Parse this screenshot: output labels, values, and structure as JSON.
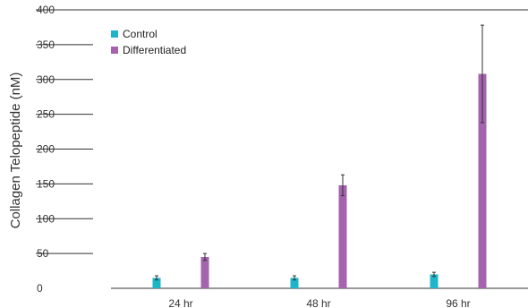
{
  "chart_data": {
    "type": "bar",
    "title": "",
    "xlabel": "",
    "ylabel": "Collagen Telopeptide (nM)",
    "ylim": [
      0,
      400
    ],
    "yticks": [
      0,
      50,
      100,
      150,
      200,
      250,
      300,
      350,
      400
    ],
    "categories": [
      "24 hr",
      "48 hr",
      "96 hr"
    ],
    "series": [
      {
        "name": "Control",
        "color": "#1fb5c9",
        "values": [
          15,
          15,
          20
        ],
        "errors": [
          3,
          3,
          3
        ]
      },
      {
        "name": "Differentiated",
        "color": "#a463ad",
        "values": [
          45,
          148,
          308
        ],
        "errors": [
          5,
          15,
          70
        ]
      }
    ],
    "legend_position": "top-left",
    "grid": true
  }
}
